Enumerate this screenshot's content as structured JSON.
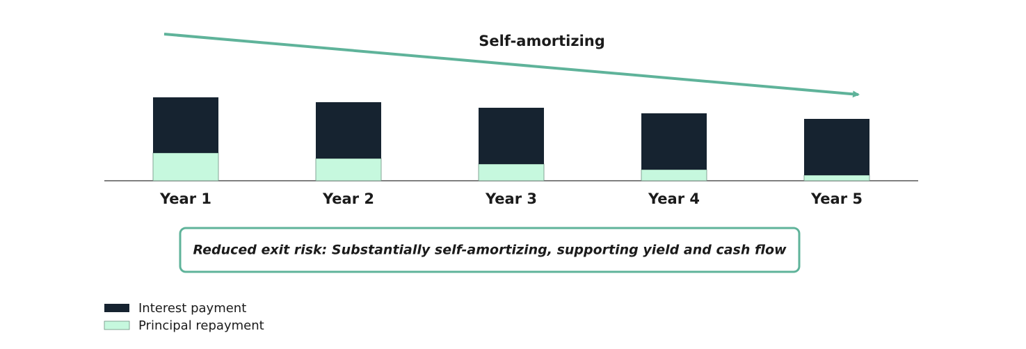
{
  "chart_data": {
    "type": "stacked-bar",
    "title": "Self-amortizing",
    "annotation": "Reduced exit risk: Substantially self-amortizing, supporting yield and cash flow",
    "categories": [
      "Year 1",
      "Year 2",
      "Year 3",
      "Year 4",
      "Year 5"
    ],
    "series": [
      {
        "name": "Principal repayment",
        "color": "#c6f8de",
        "values": [
          40,
          32,
          24,
          16,
          8
        ]
      },
      {
        "name": "Interest payment",
        "color": "#162330",
        "values": [
          80,
          81,
          81,
          81,
          81
        ]
      }
    ],
    "ylim": [
      0,
      120
    ],
    "legend": "bottom-left"
  }
}
